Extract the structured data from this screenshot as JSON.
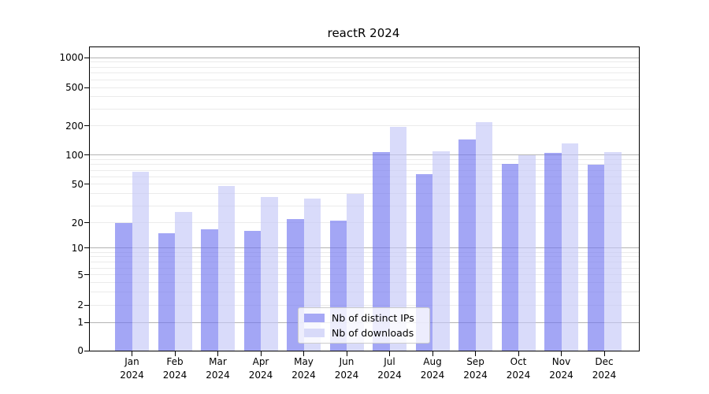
{
  "chart_data": {
    "type": "bar",
    "title": "reactR 2024",
    "categories": [
      "Jan",
      "Feb",
      "Mar",
      "Apr",
      "May",
      "Jun",
      "Jul",
      "Aug",
      "Sep",
      "Oct",
      "Nov",
      "Dec"
    ],
    "x_year_label": "2024",
    "series": [
      {
        "name": "Nb of distinct IPs",
        "color": "rgba(114,118,240,0.65)",
        "legend_color": "#a6a8f5",
        "values": [
          20,
          15,
          17,
          16,
          22,
          21,
          108,
          64,
          145,
          82,
          106,
          80
        ]
      },
      {
        "name": "Nb of downloads",
        "color": "rgba(197,200,247,0.65)",
        "legend_color": "#d8daf9",
        "values": [
          67,
          26,
          48,
          37,
          36,
          40,
          197,
          110,
          218,
          100,
          132,
          107
        ]
      }
    ],
    "y_axis": {
      "scale": "symlog",
      "range": [
        0,
        1000
      ],
      "ticks": [
        0,
        1,
        2,
        5,
        10,
        20,
        50,
        100,
        200,
        500,
        1000
      ],
      "mid_gridlines": [
        2,
        5,
        20,
        50,
        200,
        500
      ],
      "minor_gridlines": [
        3,
        4,
        6,
        7,
        8,
        9,
        30,
        40,
        60,
        70,
        80,
        90,
        300,
        400,
        600,
        700,
        800,
        900
      ],
      "major_gridlines": [
        1,
        10,
        100,
        1000
      ]
    },
    "grid": {
      "major_color": "#b3b3b3",
      "minor_color": "#ebebeb"
    },
    "legend_position": "inside-bottom-center",
    "xlabel": "",
    "ylabel": ""
  }
}
